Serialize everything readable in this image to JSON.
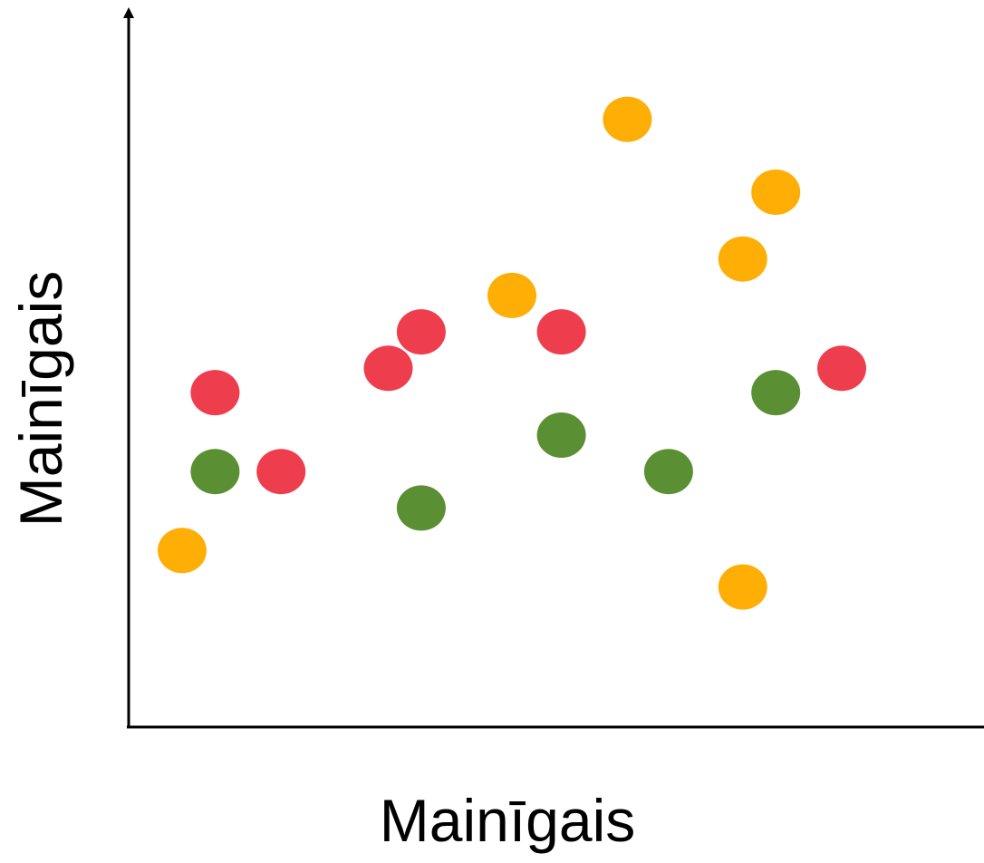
{
  "chart_data": {
    "type": "scatter",
    "title": "",
    "xlabel": "Mainīgais",
    "ylabel": "Mainīgais",
    "grid": false,
    "legend": "none",
    "xlim": [
      0,
      100
    ],
    "ylim": [
      0,
      100
    ],
    "series": [
      {
        "color": "#EE3E4D",
        "points": [
          {
            "x": 14,
            "y": 47
          },
          {
            "x": 22,
            "y": 34
          },
          {
            "x": 35,
            "y": 51
          },
          {
            "x": 39,
            "y": 57
          },
          {
            "x": 56,
            "y": 57
          },
          {
            "x": 90,
            "y": 51
          }
        ]
      },
      {
        "color": "#5A8F33",
        "points": [
          {
            "x": 14,
            "y": 34
          },
          {
            "x": 39,
            "y": 28
          },
          {
            "x": 56,
            "y": 40
          },
          {
            "x": 69,
            "y": 34
          },
          {
            "x": 82,
            "y": 47
          }
        ]
      },
      {
        "color": "#FFAE06",
        "points": [
          {
            "x": 10,
            "y": 21
          },
          {
            "x": 50,
            "y": 63
          },
          {
            "x": 64,
            "y": 92
          },
          {
            "x": 78,
            "y": 69
          },
          {
            "x": 82,
            "y": 80
          },
          {
            "x": 78,
            "y": 15
          }
        ]
      }
    ]
  }
}
